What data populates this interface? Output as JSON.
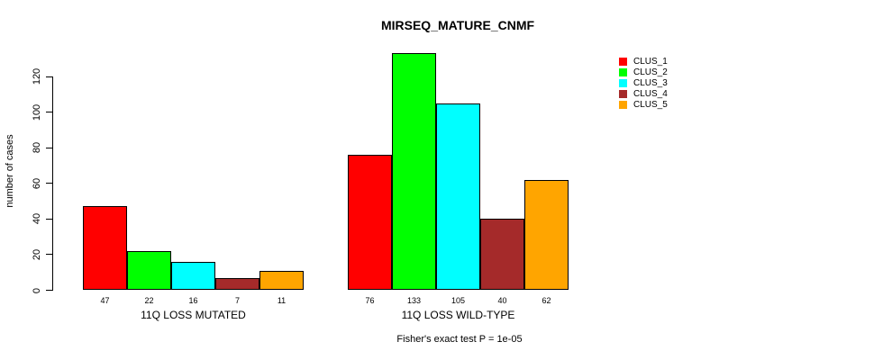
{
  "chart_data": {
    "type": "bar",
    "title": "MIRSEQ_MATURE_CNMF",
    "ylabel": "number of cases",
    "xlabel": "",
    "categories": [
      "11Q LOSS MUTATED",
      "11Q LOSS WILD-TYPE"
    ],
    "series": [
      {
        "name": "CLUS_1",
        "color": "#FF0000",
        "values": [
          47,
          76
        ]
      },
      {
        "name": "CLUS_2",
        "color": "#00FF00",
        "values": [
          22,
          133
        ]
      },
      {
        "name": "CLUS_3",
        "color": "#00FFFF",
        "values": [
          16,
          105
        ]
      },
      {
        "name": "CLUS_4",
        "color": "#A52A2A",
        "values": [
          7,
          40
        ]
      },
      {
        "name": "CLUS_5",
        "color": "#FFA500",
        "values": [
          11,
          62
        ]
      }
    ],
    "bar_value_labels": [
      [
        47,
        22,
        16,
        7,
        11
      ],
      [
        76,
        133,
        105,
        40,
        62
      ]
    ],
    "yticks": [
      0,
      20,
      40,
      60,
      80,
      100,
      120
    ],
    "ylim": [
      0,
      133
    ],
    "grid": false,
    "legend_position": "right",
    "annotation": "Fisher's exact test P = 1e-05"
  },
  "colors": {
    "bar_border": "#000000",
    "axis": "#000000",
    "text": "#000000",
    "background": "#FFFFFF"
  }
}
